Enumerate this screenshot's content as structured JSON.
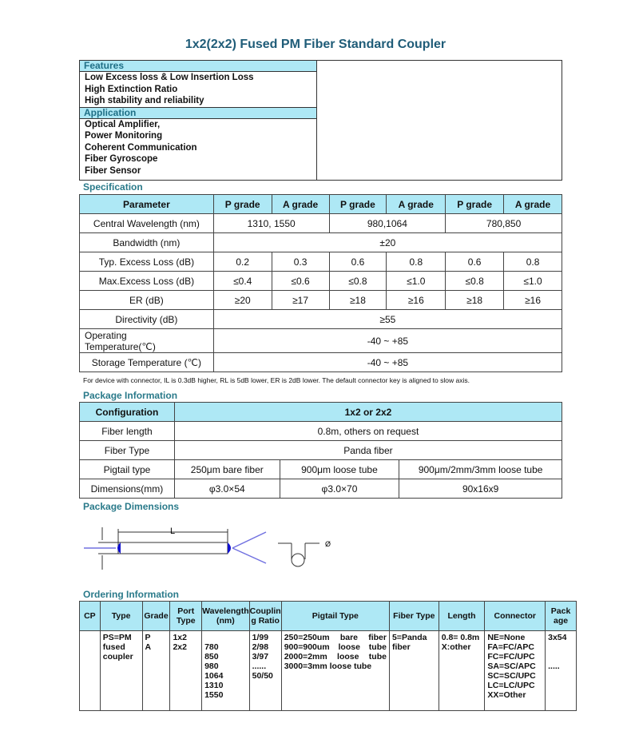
{
  "title": "1x2(2x2) Fused PM Fiber Standard Coupler",
  "features": {
    "heading": "Features",
    "items": [
      "Low Excess loss & Low Insertion Loss",
      "High Extinction Ratio",
      "High stability and reliability"
    ]
  },
  "application": {
    "heading": "Application",
    "items": [
      "Optical Amplifier,",
      "Power Monitoring",
      "Coherent Communication",
      "Fiber Gyroscope",
      "Fiber Sensor"
    ]
  },
  "specification": {
    "heading": "Specification",
    "header": [
      "Parameter",
      "P grade",
      "A grade",
      "P grade",
      "A grade",
      "P grade",
      "A grade"
    ],
    "rows": {
      "wavelength": [
        "Central Wavelength (nm)",
        "1310, 1550",
        "980,1064",
        "780,850"
      ],
      "bandwidth": [
        "Bandwidth (nm)",
        "±20"
      ],
      "typ_loss": [
        "Typ. Excess Loss (dB)",
        "0.2",
        "0.3",
        "0.6",
        "0.8",
        "0.6",
        "0.8"
      ],
      "max_loss": [
        "Max.Excess Loss (dB)",
        "≤0.4",
        "≤0.6",
        "≤0.8",
        "≤1.0",
        "≤0.8",
        "≤1.0"
      ],
      "er": [
        "ER (dB)",
        "≥20",
        "≥17",
        "≥18",
        "≥16",
        "≥18",
        "≥16"
      ],
      "directivity": [
        "Directivity (dB)",
        "≥55"
      ],
      "op_temp": [
        "Operating Temperature(℃)",
        "-40 ~ +85"
      ],
      "storage_temp": [
        "Storage Temperature (℃)",
        "-40 ~ +85"
      ]
    },
    "note": "For device with connector, IL is 0.3dB higher, RL is 5dB lower, ER is 2dB lower. The default connector key is aligned to slow axis."
  },
  "package_info": {
    "heading": "Package Information",
    "rows": {
      "config": [
        "Configuration",
        "1x2 or 2x2"
      ],
      "length": [
        "Fiber length",
        "0.8m, others on request"
      ],
      "type": [
        "Fiber Type",
        "Panda fiber"
      ],
      "pigtail": [
        "Pigtail type",
        "250μm bare fiber",
        "900μm loose tube",
        "900μm/2mm/3mm loose tube"
      ],
      "dims": [
        "Dimensions(mm)",
        "φ3.0×54",
        "φ3.0×70",
        "90x16x9"
      ]
    }
  },
  "package_dimensions": {
    "heading": "Package Dimensions",
    "labels": {
      "length": "L",
      "diameter": "Ø"
    }
  },
  "ordering": {
    "heading": "Ordering Information",
    "header": [
      "CP",
      "Type",
      "Grade",
      "Port Type",
      "Wavelength (nm)",
      "Couplin g Ratio",
      "Pigtail Type",
      "Fiber Type",
      "Length",
      "Connector",
      "Pack age"
    ],
    "values": [
      "",
      "PS=PM\nfused\ncoupler",
      "P\nA",
      "1x2\n2x2",
      "\n780\n850\n980\n1064\n1310\n1550",
      "1/99\n2/98\n3/97\n......\n50/50",
      "250=250um bare fiber\n900=900um loose tube\n2000=2mm loose tube\n3000=3mm loose tube",
      "5=Panda\nfiber",
      "0.8= 0.8m\nX:other",
      "NE=None\nFA=FC/APC\nFC=FC/UPC\nSA=SC/APC\nSC=SC/UPC\nLC=LC/UPC\nXX=Other",
      "3x54\n\n\n....."
    ]
  }
}
